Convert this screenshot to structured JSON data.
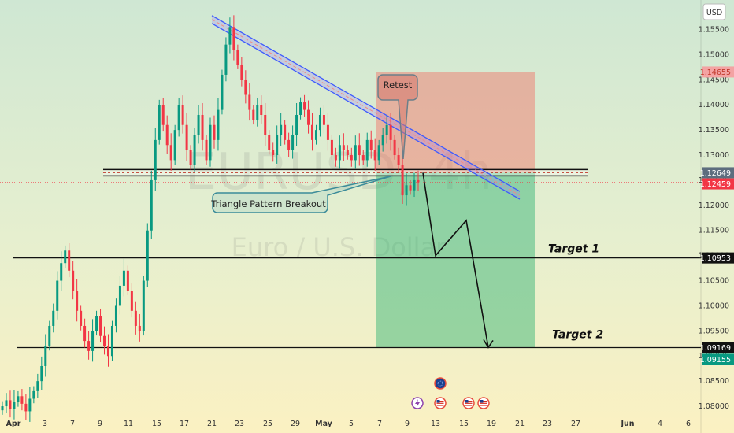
{
  "chart_data": {
    "type": "candlestick",
    "symbol": "EURUSD",
    "timeframe": "4h",
    "currency": "USD",
    "watermark_symbol": "EURUSD, 4h",
    "watermark_name": "Euro / U.S. Dollar",
    "y_range": [
      1.0775,
      1.159
    ],
    "y_ticks": [
      "1.15500",
      "1.15000",
      "1.14500",
      "1.14000",
      "1.13500",
      "1.13000",
      "1.12500",
      "1.12000",
      "1.11500",
      "1.11000",
      "1.10500",
      "1.10000",
      "1.09500",
      "1.09000",
      "1.08500",
      "1.08000"
    ],
    "x_ticks": [
      "Apr",
      "3",
      "7",
      "9",
      "11",
      "15",
      "17",
      "21",
      "23",
      "25",
      "29",
      "May",
      "5",
      "7",
      "9",
      "13",
      "15",
      "19",
      "21",
      "23",
      "27",
      "Jun",
      "4",
      "6"
    ],
    "price_tags": [
      {
        "label": "1.14655",
        "price": 1.14655,
        "style": "loss"
      },
      {
        "label": "1.12649",
        "price": 1.12649,
        "style": "level"
      },
      {
        "label": "1.12459",
        "price": 1.12459,
        "style": "current"
      },
      {
        "label": "1.10953",
        "price": 1.10953,
        "style": "target"
      },
      {
        "label": "1.09169",
        "price": 1.09169,
        "style": "target"
      },
      {
        "label": "1.09155",
        "price": 1.09155,
        "style": "bid"
      }
    ],
    "annotations": {
      "retest": "Retest",
      "breakout": "Triangle Pattern Breakout",
      "target1": "Target 1",
      "target2": "Target 2"
    },
    "levels": {
      "support": 1.12649,
      "target1": 1.10953,
      "target2": 1.09169,
      "stop": 1.14655
    },
    "series": [
      1.08,
      1.0812,
      1.0795,
      1.0808,
      1.082,
      1.0805,
      1.079,
      1.0815,
      1.083,
      1.085,
      1.088,
      1.092,
      1.096,
      1.099,
      1.105,
      1.1085,
      1.111,
      1.107,
      1.103,
      1.099,
      1.096,
      1.093,
      1.091,
      1.095,
      1.098,
      1.094,
      1.092,
      1.09,
      1.096,
      1.1,
      1.104,
      1.107,
      1.103,
      1.099,
      1.096,
      1.095,
      1.105,
      1.115,
      1.125,
      1.133,
      1.14,
      1.136,
      1.132,
      1.129,
      1.135,
      1.14,
      1.136,
      1.131,
      1.128,
      1.134,
      1.138,
      1.133,
      1.129,
      1.136,
      1.133,
      1.139,
      1.146,
      1.152,
      1.1555,
      1.151,
      1.148,
      1.145,
      1.142,
      1.139,
      1.137,
      1.14,
      1.138,
      1.134,
      1.131,
      1.13,
      1.134,
      1.136,
      1.133,
      1.131,
      1.134,
      1.138,
      1.1405,
      1.139,
      1.136,
      1.133,
      1.135,
      1.138,
      1.136,
      1.133,
      1.13,
      1.129,
      1.132,
      1.131,
      1.13,
      1.129,
      1.132,
      1.13,
      1.129,
      1.133,
      1.131,
      1.129,
      1.132,
      1.134,
      1.136,
      1.133,
      1.13,
      1.128,
      1.122,
      1.124,
      1.123,
      1.125,
      1.1246
    ],
    "projection": [
      {
        "date": "May 10",
        "price": 1.1265
      },
      {
        "date": "May 13",
        "price": 1.11
      },
      {
        "date": "May 16",
        "price": 1.117
      },
      {
        "date": "May 19",
        "price": 1.0917
      }
    ],
    "trendline": [
      {
        "date": "Apr 21",
        "price": 1.157
      },
      {
        "date": "May 22",
        "price": 1.122
      }
    ],
    "risk_box": {
      "top": 1.14655,
      "entry": 1.1265,
      "bottom": 1.09169
    },
    "event_icons": [
      "lightning-icon",
      "us-flag-icon",
      "globe-icon",
      "us-flag-icon",
      "us-flag-icon"
    ],
    "colors": {
      "bull": "#089981",
      "bear": "#f23645",
      "trendline": "#3d5afe",
      "trendline_inner": "#f28b82",
      "loss_zone": "rgba(242,110,100,0.45)",
      "profit_zone": "rgba(40,175,110,0.45)",
      "bg_top": "#cfe7d3",
      "bg_bottom": "#fbf1c2"
    }
  }
}
